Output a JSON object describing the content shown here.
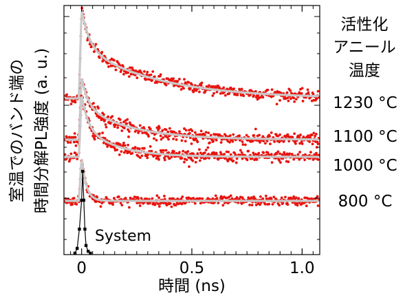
{
  "chart_data": {
    "type": "scatter",
    "xlabel": "時間 (ns)",
    "ylabel_line1": "室温でのバンド端の",
    "ylabel_line2": "時間分解PL強度 (a. u.)",
    "xlim": [
      -0.08,
      1.08
    ],
    "xticks": [
      {
        "value": 0,
        "label": "0"
      },
      {
        "value": 0.5,
        "label": "0.5"
      },
      {
        "value": 1.0,
        "label": "1.0"
      }
    ],
    "legend_title": [
      "活性化",
      "アニール",
      "温度"
    ],
    "series": [
      {
        "name": "1230 °C",
        "baseline": 0.14,
        "amplitude": 0.72,
        "tau_fast": 0.035,
        "tau_slow": 0.34,
        "frac_fast": 0.42,
        "noise": 0.022
      },
      {
        "name": "1100 °C",
        "baseline": 0.135,
        "amplitude": 0.5,
        "tau_fast": 0.03,
        "tau_slow": 0.22,
        "frac_fast": 0.45,
        "noise": 0.024
      },
      {
        "name": "1000 °C",
        "baseline": 0.14,
        "amplitude": 0.5,
        "tau_fast": 0.028,
        "tau_slow": 0.15,
        "frac_fast": 0.5,
        "noise": 0.022
      },
      {
        "name": "800 °C",
        "baseline": 0.1,
        "amplitude": 0.36,
        "tau_fast": 0.02,
        "tau_slow": 0.03,
        "frac_fast": 0.9,
        "noise": 0.018
      }
    ],
    "system_response": {
      "name": "System",
      "x": [
        -0.03,
        -0.02,
        -0.01,
        0.0,
        0.005,
        0.01,
        0.015,
        0.02,
        0.03,
        0.04
      ],
      "y": [
        0.0,
        0.05,
        0.25,
        0.55,
        0.85,
        0.55,
        0.25,
        0.08,
        0.02,
        0.0
      ]
    },
    "colors": {
      "data": "#e8140f",
      "fit": "#c9c9c9",
      "system": "#000000",
      "axis": "#000000"
    },
    "grid": false
  }
}
